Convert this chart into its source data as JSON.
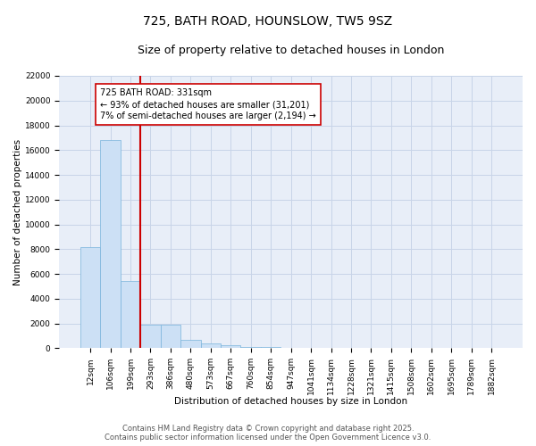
{
  "title_line1": "725, BATH ROAD, HOUNSLOW, TW5 9SZ",
  "title_line2": "Size of property relative to detached houses in London",
  "xlabel": "Distribution of detached houses by size in London",
  "ylabel": "Number of detached properties",
  "categories": [
    "12sqm",
    "106sqm",
    "199sqm",
    "293sqm",
    "386sqm",
    "480sqm",
    "573sqm",
    "667sqm",
    "760sqm",
    "854sqm",
    "947sqm",
    "1041sqm",
    "1134sqm",
    "1228sqm",
    "1321sqm",
    "1415sqm",
    "1508sqm",
    "1602sqm",
    "1695sqm",
    "1789sqm",
    "1882sqm"
  ],
  "values": [
    8200,
    16800,
    5450,
    1900,
    1900,
    650,
    380,
    230,
    130,
    80,
    0,
    0,
    0,
    0,
    0,
    0,
    0,
    0,
    0,
    0,
    0
  ],
  "bar_color": "#cce0f5",
  "bar_edge_color": "#7ab4dc",
  "grid_color": "#c8d4e8",
  "background_color": "#e8eef8",
  "vline_x": 2.5,
  "vline_color": "#cc0000",
  "annotation_line1": "725 BATH ROAD: 331sqm",
  "annotation_line2": "← 93% of detached houses are smaller (31,201)",
  "annotation_line3": "7% of semi-detached houses are larger (2,194) →",
  "annotation_box_facecolor": "#ffffff",
  "annotation_box_edgecolor": "#cc0000",
  "ylim_max": 22000,
  "yticks": [
    0,
    2000,
    4000,
    6000,
    8000,
    10000,
    12000,
    14000,
    16000,
    18000,
    20000,
    22000
  ],
  "footer_text": "Contains HM Land Registry data © Crown copyright and database right 2025.\nContains public sector information licensed under the Open Government Licence v3.0.",
  "title_fontsize": 10,
  "subtitle_fontsize": 9,
  "axis_label_fontsize": 7.5,
  "tick_fontsize": 6.5,
  "annotation_fontsize": 7,
  "footer_fontsize": 6
}
